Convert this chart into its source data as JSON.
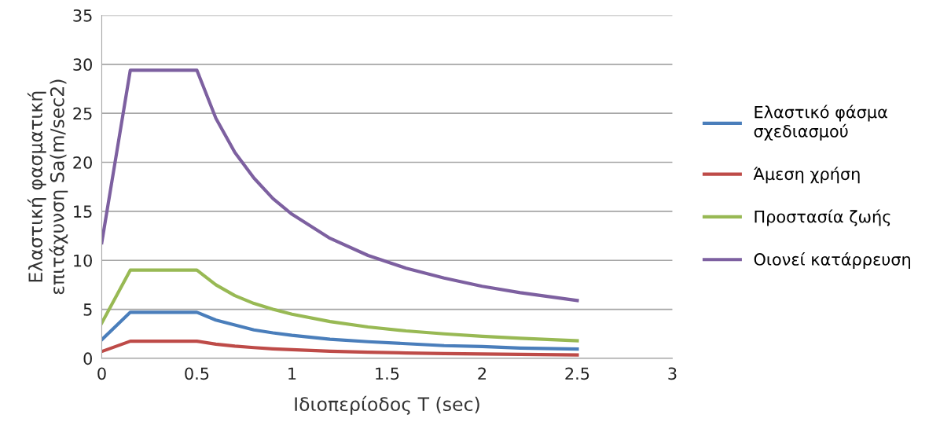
{
  "chart_data": {
    "type": "line",
    "xlabel": "Ιδιοπερίοδος T (sec)",
    "ylabel": "Ελαστική φασματική\nεπιτάχυνση Sa(m/sec2)",
    "x": [
      0,
      0.15,
      0.5,
      0.6,
      0.7,
      0.8,
      0.9,
      1.0,
      1.2,
      1.4,
      1.6,
      1.8,
      2.0,
      2.2,
      2.5
    ],
    "series": [
      {
        "name": "Ελαστικό φάσμα\nσχεδιασμού",
        "color": "#4a7ebb",
        "values": [
          1.9,
          4.7,
          4.7,
          3.9,
          3.4,
          2.9,
          2.6,
          2.35,
          1.95,
          1.7,
          1.5,
          1.3,
          1.2,
          1.05,
          0.95
        ]
      },
      {
        "name": "Άμεση χρήση",
        "color": "#be4b48",
        "values": [
          0.7,
          1.75,
          1.75,
          1.45,
          1.25,
          1.1,
          0.97,
          0.88,
          0.73,
          0.63,
          0.55,
          0.49,
          0.44,
          0.4,
          0.35
        ]
      },
      {
        "name": "Προστασία ζωής",
        "color": "#98b954",
        "values": [
          3.6,
          9.0,
          9.0,
          7.5,
          6.4,
          5.6,
          5.0,
          4.5,
          3.75,
          3.2,
          2.8,
          2.5,
          2.25,
          2.05,
          1.8
        ]
      },
      {
        "name": "Οιονεί κατάρρευση",
        "color": "#7d60a0",
        "values": [
          11.8,
          29.4,
          29.4,
          24.5,
          21.0,
          18.4,
          16.3,
          14.7,
          12.25,
          10.5,
          9.2,
          8.2,
          7.35,
          6.7,
          5.9
        ]
      }
    ],
    "xlim": [
      0,
      3
    ],
    "xticks": [
      0,
      0.5,
      1,
      1.5,
      2,
      2.5,
      3
    ],
    "ylim": [
      0,
      35
    ],
    "yticks": [
      0,
      5,
      10,
      15,
      20,
      25,
      30,
      35
    ],
    "grid": "y",
    "legend": "right",
    "marker": "none",
    "line_style": "solid"
  }
}
